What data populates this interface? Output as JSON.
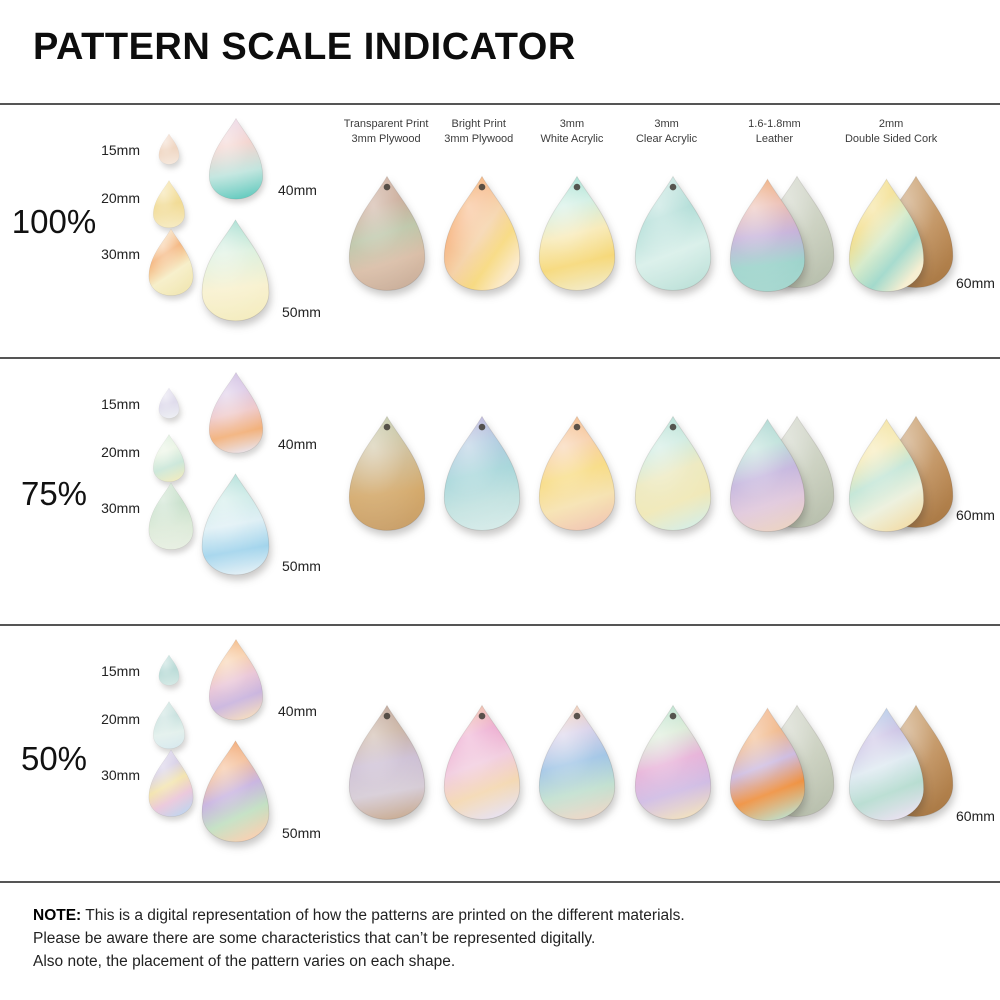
{
  "title": "PATTERN SCALE INDICATOR",
  "material_headers": [
    {
      "line1": "Transparent Print",
      "line2": "3mm Plywood"
    },
    {
      "line1": "Bright Print",
      "line2": "3mm Plywood"
    },
    {
      "line1": "3mm",
      "line2": "White Acrylic"
    },
    {
      "line1": "3mm",
      "line2": "Clear Acrylic"
    },
    {
      "line1": "1.6-1.8mm",
      "line2": "Leather"
    },
    {
      "line1": "2mm",
      "line2": "Double Sided Cork"
    }
  ],
  "shared_colors": {
    "leather_back": [
      "#d2d6ca",
      "#c6ccba",
      "#b9c0ae"
    ],
    "cork_back": [
      "#c99e6c",
      "#bc8a54",
      "#aa7a46"
    ],
    "divider": "#555555",
    "hole": "#3f3b35"
  },
  "rows": [
    {
      "scale": "100%",
      "size_label_right": "60mm",
      "sizes": [
        {
          "label": "15mm",
          "angle": 160,
          "colors": [
            "#f3ddcf",
            "#eed2bc",
            "#f6e9de"
          ]
        },
        {
          "label": "20mm",
          "angle": 168,
          "colors": [
            "#f6e5ac",
            "#f0d88c",
            "#f7ecc6"
          ]
        },
        {
          "label": "30mm",
          "angle": 135,
          "colors": [
            "#f8e7ca",
            "#f3aa6a",
            "#f6eec6",
            "#f2e8b6"
          ]
        },
        {
          "label": "40mm",
          "angle": 165,
          "colors": [
            "#e9d3e6",
            "#f2cfc9",
            "#bfe4dd",
            "#5ec9bd"
          ]
        },
        {
          "label": "50mm",
          "angle": 170,
          "colors": [
            "#8fd6c9",
            "#d9efdc",
            "#f8f1cf",
            "#f4ecbe"
          ]
        }
      ],
      "drops": [
        {
          "hole": true,
          "angle": 155,
          "colors": [
            "#c9a896",
            "#c3a08b",
            "#b9c3a4",
            "#d9bda6",
            "#cbb09c"
          ]
        },
        {
          "hole": true,
          "angle": 115,
          "colors": [
            "#f09a49",
            "#f6b27c",
            "#f4cfa2",
            "#f7d97e",
            "#fbeaca"
          ]
        },
        {
          "hole": true,
          "angle": 160,
          "colors": [
            "#8ed8c8",
            "#c9ecdf",
            "#f7e9b4",
            "#f6d878",
            "#f3ecca"
          ]
        },
        {
          "hole": true,
          "angle": 150,
          "colors": [
            "#c4e4de",
            "#a9dad3",
            "#d8efe9",
            "#bfe2da"
          ]
        },
        {
          "pair": "leather",
          "angle": 170,
          "colors": [
            "#ee9d5c",
            "#e9b5a8",
            "#c3aed8",
            "#9ed4cc",
            "#a8d8d0"
          ]
        },
        {
          "pair": "cork",
          "angle": 120,
          "colors": [
            "#f4e194",
            "#f1da7e",
            "#d3e9c6",
            "#9fd8ca",
            "#f6efd2"
          ]
        }
      ]
    },
    {
      "scale": "75%",
      "size_label_right": "60mm",
      "sizes": [
        {
          "label": "15mm",
          "angle": 160,
          "colors": [
            "#e6e3f0",
            "#dcd8ea",
            "#eef0f4"
          ]
        },
        {
          "label": "20mm",
          "angle": 150,
          "colors": [
            "#d9edda",
            "#e9f3e2",
            "#c9e6d8",
            "#f0ecc2"
          ]
        },
        {
          "label": "30mm",
          "angle": 170,
          "colors": [
            "#cfe4d0",
            "#c2ddc6",
            "#dcead8",
            "#e9f0e4"
          ]
        },
        {
          "label": "40mm",
          "angle": 160,
          "colors": [
            "#c6b4de",
            "#d8c4e4",
            "#eec6c6",
            "#f2b079",
            "#eae6f0"
          ]
        },
        {
          "label": "50mm",
          "angle": 165,
          "colors": [
            "#9cd6ce",
            "#c6e8e4",
            "#dceef4",
            "#a2d4ec",
            "#eaf3f7"
          ]
        }
      ],
      "drops": [
        {
          "hole": true,
          "angle": 170,
          "colors": [
            "#b9c4a0",
            "#ccba92",
            "#d3a869",
            "#c9a06b"
          ]
        },
        {
          "hole": true,
          "angle": 160,
          "colors": [
            "#b4a6d6",
            "#a6c4dc",
            "#a2d4d8",
            "#c2e2e0",
            "#d8ecea"
          ]
        },
        {
          "hole": true,
          "angle": 155,
          "colors": [
            "#f2ae74",
            "#f6c89c",
            "#f7da7e",
            "#f6e2b0",
            "#f2c8b4"
          ]
        },
        {
          "hole": true,
          "angle": 150,
          "colors": [
            "#a4d8cc",
            "#c6e8dc",
            "#ece8bc",
            "#f0e8b6",
            "#d8eee4"
          ]
        },
        {
          "pair": "leather",
          "angle": 155,
          "colors": [
            "#9ccfc9",
            "#b4dcd4",
            "#c2b2dc",
            "#e0c8dc",
            "#ecd4c4"
          ]
        },
        {
          "pair": "cork",
          "angle": 140,
          "colors": [
            "#f2dd8c",
            "#f4e6a8",
            "#bfe4d4",
            "#ecf0dc",
            "#f2e0b0"
          ]
        }
      ]
    },
    {
      "scale": "50%",
      "size_label_right": "60mm",
      "sizes": [
        {
          "label": "15mm",
          "angle": 160,
          "colors": [
            "#c2dfdb",
            "#b4d8d4",
            "#d6eae6"
          ]
        },
        {
          "label": "20mm",
          "angle": 165,
          "colors": [
            "#cfe6e2",
            "#c2dedb",
            "#e2f0ec",
            "#d8e9ee"
          ]
        },
        {
          "label": "30mm",
          "angle": 140,
          "colors": [
            "#d9d3ea",
            "#cfc6e2",
            "#f2e2a8",
            "#eac6da",
            "#c6d4ec"
          ]
        },
        {
          "label": "40mm",
          "angle": 150,
          "colors": [
            "#f2a864",
            "#f6c9a0",
            "#e8c2d4",
            "#c9b4de",
            "#f4dcc2"
          ]
        },
        {
          "label": "50mm",
          "angle": 145,
          "colors": [
            "#f09450",
            "#f2b488",
            "#c4aede",
            "#c2e0c2",
            "#f6d2b4"
          ]
        }
      ],
      "drops": [
        {
          "hole": true,
          "angle": 165,
          "colors": [
            "#b39484",
            "#c2a896",
            "#cabcd2",
            "#d6ccd6",
            "#c9ab90"
          ]
        },
        {
          "hole": true,
          "angle": 150,
          "colors": [
            "#eeb694",
            "#ea9fc9",
            "#f0c8dc",
            "#f4d8b2",
            "#e8e2f0"
          ]
        },
        {
          "hole": true,
          "angle": 160,
          "colors": [
            "#f4c4a0",
            "#d2cae6",
            "#9cc2e4",
            "#c2e0d0",
            "#f0d8c8"
          ]
        },
        {
          "hole": true,
          "angle": 155,
          "colors": [
            "#aadcc6",
            "#d4e8d0",
            "#e6aed6",
            "#d0bce4",
            "#f2e2c0"
          ]
        },
        {
          "pair": "leather",
          "angle": 150,
          "colors": [
            "#f2b488",
            "#eeab74",
            "#c9b6de",
            "#ef9140",
            "#c2dcc6"
          ]
        },
        {
          "pair": "cork",
          "angle": 150,
          "colors": [
            "#a6c6e6",
            "#c2b8e0",
            "#dce8f0",
            "#b6dcd0",
            "#e9e2f0"
          ]
        }
      ]
    }
  ],
  "note": {
    "label": "NOTE:",
    "line1": "This is a digital representation of how the patterns are printed on the different materials.",
    "line2": "Please be aware there are some characteristics that can’t be represented digitally.",
    "line3": "Also note, the placement of the pattern varies on each shape."
  }
}
